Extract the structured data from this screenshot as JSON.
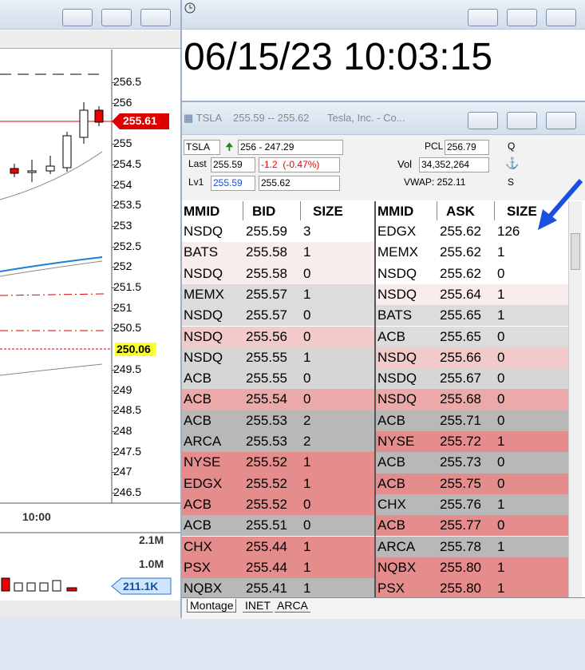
{
  "chart_window": {
    "price_labels": [
      "256.5",
      "256",
      "255",
      "254.5",
      "254",
      "253.5",
      "253",
      "252.5",
      "252",
      "251.5",
      "251",
      "250.5",
      "249.5",
      "249",
      "248.5",
      "248",
      "247.5",
      "247",
      "246.5"
    ],
    "price_steps": [
      0,
      1,
      3,
      4,
      5,
      6,
      7,
      8,
      9,
      10,
      11,
      12,
      14,
      15,
      16,
      17,
      18,
      19,
      20
    ],
    "last_badge": "255.61",
    "vwap_badge": "250.06",
    "time_label": "10:00",
    "volume_labels": [
      "2.1M",
      "1.0M"
    ],
    "volume_badge": "211.1K"
  },
  "clock": {
    "time": "06/15/23 10:03:15"
  },
  "montage": {
    "title_symbol": "TSLA",
    "title_quote": "255.59 -- 255.62",
    "title_name": "Tesla, Inc. - Co...",
    "symbol": "TSLA",
    "range": "256 - 247.29",
    "pcl_label": "PCL",
    "pcl": "256.79",
    "q": "Q",
    "last_label": "Last",
    "last": "255.59",
    "change": "-1.2  (-0.47%)",
    "vol_label": "Vol",
    "vol": "34,352,264",
    "lv1_label": "Lv1",
    "lv1_bid": "255.59",
    "lv1_ask": "255.62",
    "vwap": "VWAP: 252.11",
    "s": "S",
    "headers": [
      "MMID",
      "BID",
      "SIZE",
      "MMID",
      "ASK",
      "SIZE"
    ],
    "bids": [
      {
        "mmid": "NSDQ",
        "price": "255.59",
        "size": "3",
        "color": "#ffffff"
      },
      {
        "mmid": "BATS",
        "price": "255.58",
        "size": "1",
        "color": "#f8ecec"
      },
      {
        "mmid": "NSDQ",
        "price": "255.58",
        "size": "0",
        "color": "#f8ecec"
      },
      {
        "mmid": "MEMX",
        "price": "255.57",
        "size": "1",
        "color": "#dcdcdc"
      },
      {
        "mmid": "NSDQ",
        "price": "255.57",
        "size": "0",
        "color": "#dcdcdc"
      },
      {
        "mmid": "NSDQ",
        "price": "255.56",
        "size": "0",
        "color": "#f3caca"
      },
      {
        "mmid": "NSDQ",
        "price": "255.55",
        "size": "1",
        "color": "#d6d6d6"
      },
      {
        "mmid": "ACB",
        "price": "255.55",
        "size": "0",
        "color": "#d6d6d6"
      },
      {
        "mmid": "ACB",
        "price": "255.54",
        "size": "0",
        "color": "#eba9a9"
      },
      {
        "mmid": "ACB",
        "price": "255.53",
        "size": "2",
        "color": "#b8b8b8"
      },
      {
        "mmid": "ARCA",
        "price": "255.53",
        "size": "2",
        "color": "#b8b8b8"
      },
      {
        "mmid": "NYSE",
        "price": "255.52",
        "size": "1",
        "color": "#e58c8c"
      },
      {
        "mmid": "EDGX",
        "price": "255.52",
        "size": "1",
        "color": "#e58c8c"
      },
      {
        "mmid": "ACB",
        "price": "255.52",
        "size": "0",
        "color": "#e58c8c"
      },
      {
        "mmid": "ACB",
        "price": "255.51",
        "size": "0",
        "color": "#b8b8b8"
      },
      {
        "mmid": "CHX",
        "price": "255.44",
        "size": "1",
        "color": "#e58c8c"
      },
      {
        "mmid": "PSX",
        "price": "255.44",
        "size": "1",
        "color": "#e58c8c"
      },
      {
        "mmid": "NQBX",
        "price": "255.41",
        "size": "1",
        "color": "#b8b8b8"
      }
    ],
    "asks": [
      {
        "mmid": "EDGX",
        "price": "255.62",
        "size": "126",
        "color": "#ffffff"
      },
      {
        "mmid": "MEMX",
        "price": "255.62",
        "size": "1",
        "color": "#ffffff"
      },
      {
        "mmid": "NSDQ",
        "price": "255.62",
        "size": "0",
        "color": "#ffffff"
      },
      {
        "mmid": "NSDQ",
        "price": "255.64",
        "size": "1",
        "color": "#f8ecec"
      },
      {
        "mmid": "BATS",
        "price": "255.65",
        "size": "1",
        "color": "#dcdcdc"
      },
      {
        "mmid": "ACB",
        "price": "255.65",
        "size": "0",
        "color": "#dcdcdc"
      },
      {
        "mmid": "NSDQ",
        "price": "255.66",
        "size": "0",
        "color": "#f3caca"
      },
      {
        "mmid": "NSDQ",
        "price": "255.67",
        "size": "0",
        "color": "#d6d6d6"
      },
      {
        "mmid": "NSDQ",
        "price": "255.68",
        "size": "0",
        "color": "#eba9a9"
      },
      {
        "mmid": "ACB",
        "price": "255.71",
        "size": "0",
        "color": "#b8b8b8"
      },
      {
        "mmid": "NYSE",
        "price": "255.72",
        "size": "1",
        "color": "#e58c8c"
      },
      {
        "mmid": "ACB",
        "price": "255.73",
        "size": "0",
        "color": "#b8b8b8"
      },
      {
        "mmid": "ACB",
        "price": "255.75",
        "size": "0",
        "color": "#e58c8c"
      },
      {
        "mmid": "CHX",
        "price": "255.76",
        "size": "1",
        "color": "#b8b8b8"
      },
      {
        "mmid": "ACB",
        "price": "255.77",
        "size": "0",
        "color": "#e58c8c"
      },
      {
        "mmid": "ARCA",
        "price": "255.78",
        "size": "1",
        "color": "#b8b8b8"
      },
      {
        "mmid": "NQBX",
        "price": "255.80",
        "size": "1",
        "color": "#e58c8c"
      },
      {
        "mmid": "PSX",
        "price": "255.80",
        "size": "1",
        "color": "#e58c8c"
      }
    ],
    "tabs": [
      "Montage",
      "INET",
      "ARCA"
    ]
  }
}
